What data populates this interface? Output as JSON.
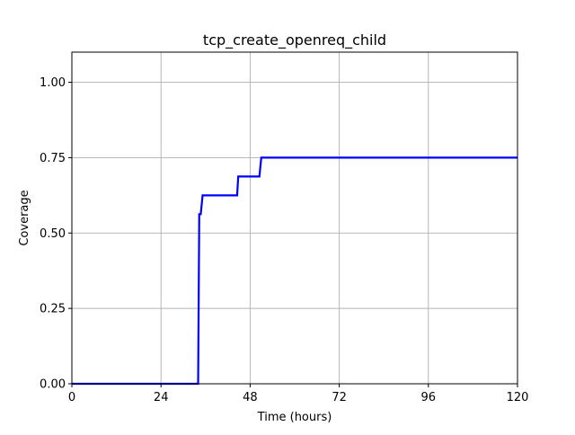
{
  "chart_data": {
    "type": "line",
    "title": "tcp_create_openreq_child",
    "xlabel": "Time (hours)",
    "ylabel": "Coverage",
    "xlim": [
      0,
      120
    ],
    "ylim": [
      0,
      1.1
    ],
    "xticks": [
      0,
      24,
      48,
      72,
      96,
      120
    ],
    "xtick_labels": [
      "0",
      "24",
      "48",
      "72",
      "96",
      "120"
    ],
    "yticks": [
      0,
      0.25,
      0.5,
      0.75,
      1.0
    ],
    "ytick_labels": [
      "0.00",
      "0.25",
      "0.50",
      "0.75",
      "1.00"
    ],
    "grid": true,
    "series": [
      {
        "color": "#0000ff",
        "x": [
          0,
          34,
          34.3,
          34.7,
          35.2,
          44.5,
          44.8,
          50.5,
          51.0,
          120
        ],
        "y": [
          0,
          0,
          0.5625,
          0.5625,
          0.625,
          0.625,
          0.6875,
          0.6875,
          0.75,
          0.75
        ]
      }
    ]
  }
}
